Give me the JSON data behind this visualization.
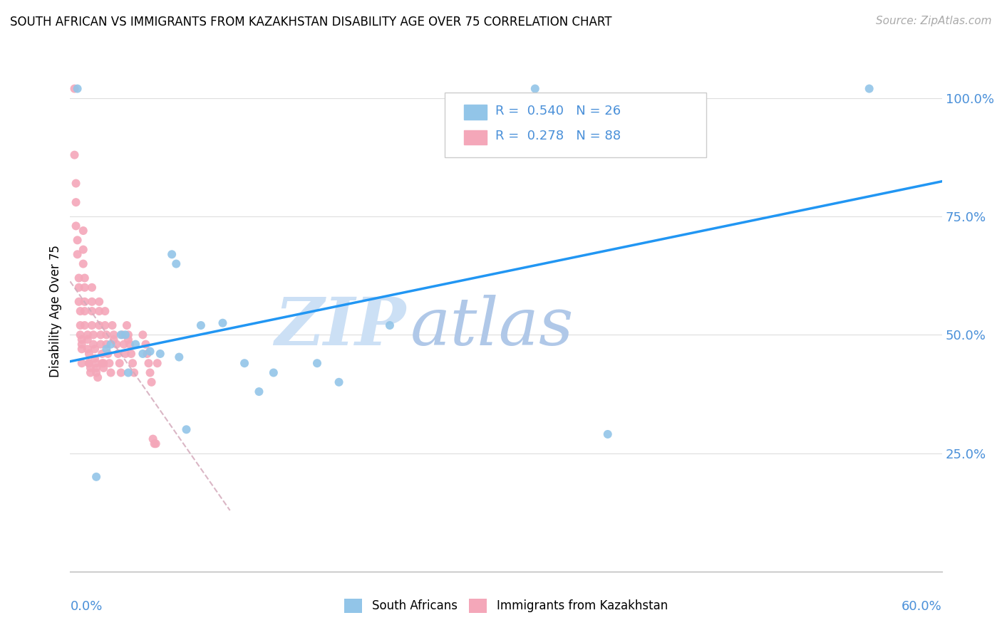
{
  "title": "SOUTH AFRICAN VS IMMIGRANTS FROM KAZAKHSTAN DISABILITY AGE OVER 75 CORRELATION CHART",
  "source": "Source: ZipAtlas.com",
  "ylabel": "Disability Age Over 75",
  "x_min": 0.0,
  "x_max": 0.6,
  "y_min": 0.0,
  "y_max": 1.1,
  "y_ticks": [
    0.25,
    0.5,
    0.75,
    1.0
  ],
  "y_tick_labels": [
    "25.0%",
    "50.0%",
    "75.0%",
    "100.0%"
  ],
  "legend_blue_r": "0.540",
  "legend_blue_n": "26",
  "legend_pink_r": "0.278",
  "legend_pink_n": "88",
  "legend_label_blue": "South Africans",
  "legend_label_pink": "Immigrants from Kazakhstan",
  "blue_color": "#92c5e8",
  "pink_color": "#f4a7b9",
  "blue_line_color": "#2196F3",
  "pink_line_color": "#d4aabb",
  "axis_label_color": "#4a90d9",
  "watermark_zip_color": "#c8dff5",
  "watermark_atlas_color": "#b8cce8",
  "blue_scatter_x": [
    0.005,
    0.07,
    0.22,
    0.09,
    0.105,
    0.073,
    0.32,
    0.05,
    0.17,
    0.08,
    0.37,
    0.55,
    0.12,
    0.13,
    0.04,
    0.025,
    0.035,
    0.045,
    0.055,
    0.062,
    0.018,
    0.075,
    0.14,
    0.185,
    0.038,
    0.028
  ],
  "blue_scatter_y": [
    1.02,
    0.67,
    0.52,
    0.52,
    0.525,
    0.65,
    1.02,
    0.46,
    0.44,
    0.3,
    0.29,
    1.02,
    0.44,
    0.38,
    0.42,
    0.47,
    0.5,
    0.48,
    0.465,
    0.46,
    0.2,
    0.453,
    0.42,
    0.4,
    0.5,
    0.48
  ],
  "pink_scatter_x": [
    0.003,
    0.003,
    0.004,
    0.004,
    0.004,
    0.005,
    0.005,
    0.006,
    0.006,
    0.006,
    0.007,
    0.007,
    0.007,
    0.008,
    0.008,
    0.008,
    0.008,
    0.009,
    0.009,
    0.009,
    0.01,
    0.01,
    0.01,
    0.01,
    0.01,
    0.012,
    0.012,
    0.012,
    0.013,
    0.013,
    0.013,
    0.014,
    0.014,
    0.015,
    0.015,
    0.015,
    0.015,
    0.016,
    0.016,
    0.017,
    0.017,
    0.018,
    0.018,
    0.018,
    0.019,
    0.02,
    0.02,
    0.02,
    0.021,
    0.021,
    0.022,
    0.022,
    0.023,
    0.023,
    0.024,
    0.024,
    0.025,
    0.025,
    0.026,
    0.027,
    0.028,
    0.029,
    0.03,
    0.03,
    0.032,
    0.033,
    0.034,
    0.035,
    0.036,
    0.037,
    0.038,
    0.039,
    0.04,
    0.04,
    0.041,
    0.042,
    0.043,
    0.044,
    0.05,
    0.052,
    0.053,
    0.054,
    0.055,
    0.056,
    0.057,
    0.058,
    0.059,
    0.06
  ],
  "pink_scatter_y": [
    1.02,
    0.88,
    0.82,
    0.78,
    0.73,
    0.7,
    0.67,
    0.62,
    0.6,
    0.57,
    0.55,
    0.52,
    0.5,
    0.49,
    0.48,
    0.47,
    0.44,
    0.72,
    0.68,
    0.65,
    0.62,
    0.6,
    0.57,
    0.55,
    0.52,
    0.5,
    0.49,
    0.47,
    0.46,
    0.44,
    0.44,
    0.43,
    0.42,
    0.6,
    0.57,
    0.55,
    0.52,
    0.5,
    0.48,
    0.47,
    0.45,
    0.44,
    0.43,
    0.42,
    0.41,
    0.57,
    0.55,
    0.52,
    0.5,
    0.48,
    0.46,
    0.44,
    0.43,
    0.44,
    0.55,
    0.52,
    0.5,
    0.48,
    0.46,
    0.44,
    0.42,
    0.52,
    0.5,
    0.49,
    0.48,
    0.46,
    0.44,
    0.42,
    0.5,
    0.48,
    0.46,
    0.52,
    0.5,
    0.49,
    0.48,
    0.46,
    0.44,
    0.42,
    0.5,
    0.48,
    0.46,
    0.44,
    0.42,
    0.4,
    0.28,
    0.27,
    0.27,
    0.44
  ]
}
